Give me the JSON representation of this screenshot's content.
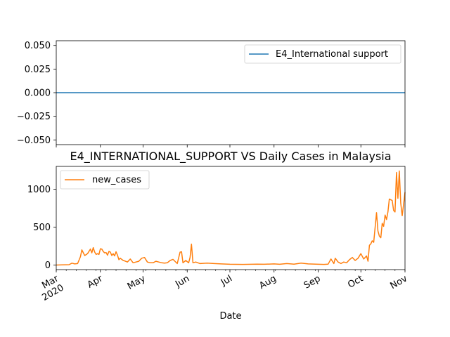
{
  "chart_data": [
    {
      "type": "line",
      "title": "",
      "xlabel": "",
      "ylabel": "",
      "ylim": [
        -0.055,
        0.055
      ],
      "yticks": [
        "0.050",
        "0.025",
        "0.000",
        "−0.025",
        "−0.050"
      ],
      "ytick_values": [
        0.05,
        0.025,
        0.0,
        -0.025,
        -0.05
      ],
      "legend": "top-right",
      "grid": false,
      "series": [
        {
          "name": "E4_International support",
          "color": "#1f77b4",
          "x": [
            "2020-03-01",
            "2020-11-01"
          ],
          "values": [
            0,
            0
          ]
        }
      ]
    },
    {
      "type": "line",
      "title": "E4_INTERNATIONAL_SUPPORT VS Daily Cases in Malaysia",
      "xlabel": "Date",
      "ylabel": "",
      "ylim": [
        -60,
        1300
      ],
      "yticks": [
        "0",
        "500",
        "1000"
      ],
      "ytick_values": [
        0,
        500,
        1000
      ],
      "xlim": [
        "2020-03-01",
        "2020-11-01"
      ],
      "xticks": [
        "Mar\n2020",
        "Apr",
        "May",
        "Jun",
        "Jul",
        "Aug",
        "Sep",
        "Oct",
        "Nov"
      ],
      "xtick_dates": [
        "2020-03-01",
        "2020-04-01",
        "2020-05-01",
        "2020-06-01",
        "2020-07-01",
        "2020-08-01",
        "2020-09-01",
        "2020-10-01",
        "2020-11-01"
      ],
      "legend": "top-left",
      "grid": false,
      "series": [
        {
          "name": "new_cases",
          "color": "#ff7f0e",
          "x": [
            "2020-03-01",
            "2020-03-05",
            "2020-03-10",
            "2020-03-12",
            "2020-03-14",
            "2020-03-16",
            "2020-03-18",
            "2020-03-19",
            "2020-03-21",
            "2020-03-23",
            "2020-03-25",
            "2020-03-26",
            "2020-03-27",
            "2020-03-28",
            "2020-03-29",
            "2020-03-30",
            "2020-03-31",
            "2020-04-01",
            "2020-04-02",
            "2020-04-03",
            "2020-04-04",
            "2020-04-05",
            "2020-04-06",
            "2020-04-07",
            "2020-04-08",
            "2020-04-09",
            "2020-04-10",
            "2020-04-11",
            "2020-04-12",
            "2020-04-13",
            "2020-04-14",
            "2020-04-15",
            "2020-04-16",
            "2020-04-17",
            "2020-04-18",
            "2020-04-20",
            "2020-04-22",
            "2020-04-24",
            "2020-04-26",
            "2020-04-28",
            "2020-04-30",
            "2020-05-02",
            "2020-05-04",
            "2020-05-06",
            "2020-05-08",
            "2020-05-10",
            "2020-05-12",
            "2020-05-14",
            "2020-05-16",
            "2020-05-18",
            "2020-05-20",
            "2020-05-22",
            "2020-05-25",
            "2020-05-27",
            "2020-05-28",
            "2020-05-29",
            "2020-05-31",
            "2020-06-02",
            "2020-06-03",
            "2020-06-04",
            "2020-06-05",
            "2020-06-07",
            "2020-06-10",
            "2020-06-15",
            "2020-06-20",
            "2020-06-25",
            "2020-07-01",
            "2020-07-10",
            "2020-07-20",
            "2020-07-25",
            "2020-08-01",
            "2020-08-05",
            "2020-08-10",
            "2020-08-15",
            "2020-08-20",
            "2020-08-25",
            "2020-09-01",
            "2020-09-05",
            "2020-09-08",
            "2020-09-10",
            "2020-09-12",
            "2020-09-13",
            "2020-09-15",
            "2020-09-17",
            "2020-09-19",
            "2020-09-21",
            "2020-09-23",
            "2020-09-25",
            "2020-09-27",
            "2020-09-29",
            "2020-10-01",
            "2020-10-03",
            "2020-10-05",
            "2020-10-06",
            "2020-10-07",
            "2020-10-08",
            "2020-10-09",
            "2020-10-10",
            "2020-10-12",
            "2020-10-13",
            "2020-10-14",
            "2020-10-15",
            "2020-10-16",
            "2020-10-17",
            "2020-10-18",
            "2020-10-19",
            "2020-10-20",
            "2020-10-21",
            "2020-10-22",
            "2020-10-23",
            "2020-10-24",
            "2020-10-25",
            "2020-10-26",
            "2020-10-27",
            "2020-10-28",
            "2020-10-29",
            "2020-10-30",
            "2020-10-31",
            "2020-11-01"
          ],
          "values": [
            0,
            2,
            5,
            25,
            15,
            20,
            110,
            200,
            125,
            150,
            210,
            160,
            230,
            170,
            140,
            150,
            140,
            215,
            210,
            180,
            160,
            165,
            130,
            180,
            170,
            125,
            150,
            120,
            175,
            130,
            70,
            90,
            75,
            60,
            55,
            40,
            80,
            30,
            40,
            50,
            90,
            100,
            40,
            30,
            30,
            50,
            40,
            30,
            25,
            30,
            60,
            75,
            20,
            170,
            175,
            30,
            60,
            30,
            100,
            275,
            30,
            40,
            20,
            25,
            20,
            15,
            10,
            8,
            12,
            10,
            15,
            10,
            20,
            12,
            25,
            15,
            10,
            8,
            12,
            80,
            20,
            90,
            40,
            20,
            40,
            30,
            70,
            100,
            60,
            90,
            150,
            80,
            120,
            50,
            260,
            280,
            320,
            300,
            690,
            450,
            380,
            360,
            550,
            510,
            660,
            600,
            700,
            870,
            860,
            850,
            720,
            700,
            1220,
            880,
            1240,
            820,
            650,
            800,
            960
          ]
        }
      ]
    }
  ]
}
